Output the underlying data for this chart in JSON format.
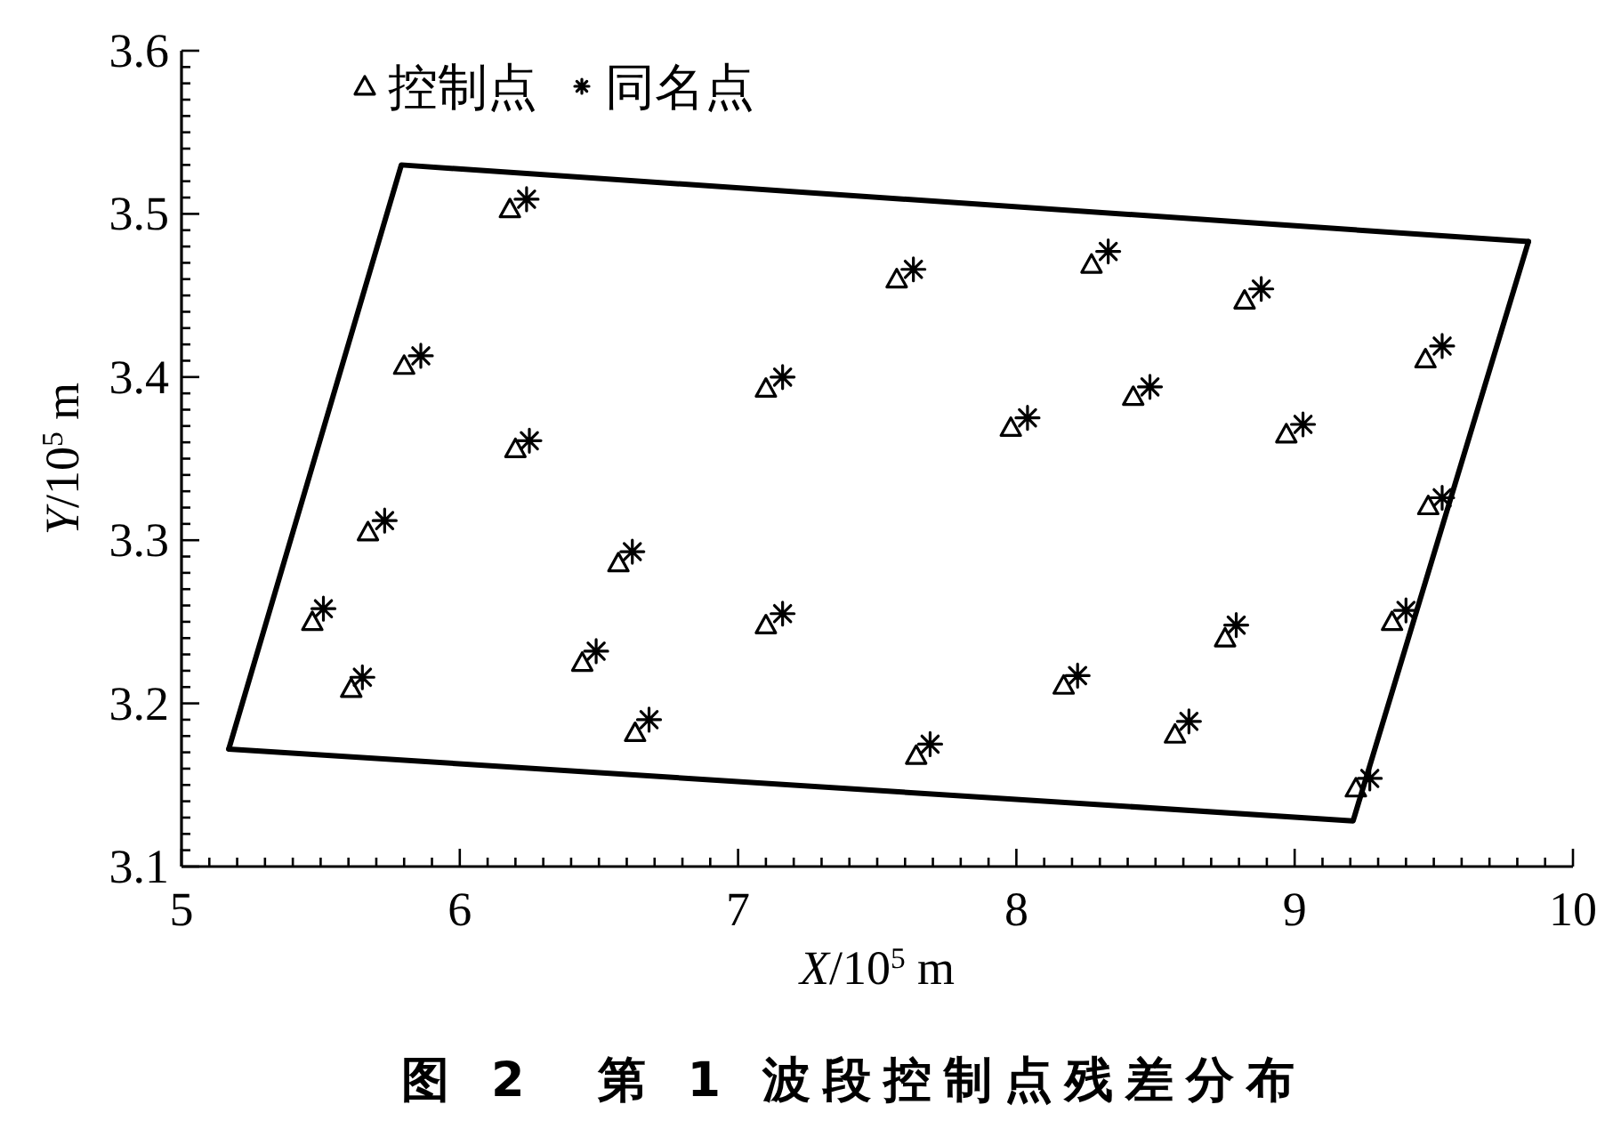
{
  "chart_data": {
    "type": "scatter",
    "title": "图 2　第 1 波段控制点残差分布",
    "xlabel": "*X*/10$^{5}$ m",
    "ylabel": "*Y*/10$^{5}$ m",
    "xlim": [
      5,
      10
    ],
    "ylim": [
      3.1,
      3.6
    ],
    "xticks": [
      5,
      {
        "value": 5.1,
        "label": null
      },
      {
        "value": 5.2,
        "label": null
      },
      {
        "value": 5.3,
        "label": null
      },
      {
        "value": 5.4,
        "label": null
      },
      {
        "value": 5.5,
        "label": null
      },
      {
        "value": 5.6,
        "label": null
      },
      {
        "value": 5.7,
        "label": null
      },
      {
        "value": 5.8,
        "label": null
      },
      {
        "value": 5.9,
        "label": null
      },
      6,
      {
        "value": 6.1,
        "label": null
      },
      {
        "value": 6.2,
        "label": null
      },
      {
        "value": 6.3,
        "label": null
      },
      {
        "value": 6.4,
        "label": null
      },
      {
        "value": 6.5,
        "label": null
      },
      {
        "value": 6.6,
        "label": null
      },
      {
        "value": 6.7,
        "label": null
      },
      {
        "value": 6.8,
        "label": null
      },
      {
        "value": 6.9,
        "label": null
      },
      7,
      {
        "value": 7.1,
        "label": null
      },
      {
        "value": 7.2,
        "label": null
      },
      {
        "value": 7.3,
        "label": null
      },
      {
        "value": 7.4,
        "label": null
      },
      {
        "value": 7.5,
        "label": null
      },
      {
        "value": 7.6,
        "label": null
      },
      {
        "value": 7.7,
        "label": null
      },
      {
        "value": 7.8,
        "label": null
      },
      {
        "value": 7.9,
        "label": null
      },
      8,
      {
        "value": 8.1,
        "label": null
      },
      {
        "value": 8.2,
        "label": null
      },
      {
        "value": 8.3,
        "label": null
      },
      {
        "value": 8.4,
        "label": null
      },
      {
        "value": 8.5,
        "label": null
      },
      {
        "value": 8.6,
        "label": null
      },
      {
        "value": 8.7,
        "label": null
      },
      {
        "value": 8.8,
        "label": null
      },
      {
        "value": 8.9,
        "label": null
      },
      9,
      {
        "value": 9.1,
        "label": null
      },
      {
        "value": 9.2,
        "label": null
      },
      {
        "value": 9.3,
        "label": null
      },
      {
        "value": 9.4,
        "label": null
      },
      {
        "value": 9.5,
        "label": null
      },
      {
        "value": 9.6,
        "label": null
      },
      {
        "value": 9.7,
        "label": null
      },
      {
        "value": 9.8,
        "label": null
      },
      {
        "value": 9.9,
        "label": null
      },
      10
    ],
    "yticks": [
      3.1,
      {
        "value": 3.11,
        "label": null
      },
      {
        "value": 3.12,
        "label": null
      },
      {
        "value": 3.13,
        "label": null
      },
      {
        "value": 3.14,
        "label": null
      },
      {
        "value": 3.15,
        "label": null
      },
      {
        "value": 3.16,
        "label": null
      },
      {
        "value": 3.17,
        "label": null
      },
      {
        "value": 3.18,
        "label": null
      },
      {
        "value": 3.19,
        "label": null
      },
      3.2,
      {
        "value": 3.21,
        "label": null
      },
      {
        "value": 3.22,
        "label": null
      },
      {
        "value": 3.23,
        "label": null
      },
      {
        "value": 3.24,
        "label": null
      },
      {
        "value": 3.25,
        "label": null
      },
      {
        "value": 3.26,
        "label": null
      },
      {
        "value": 3.27,
        "label": null
      },
      {
        "value": 3.28,
        "label": null
      },
      {
        "value": 3.29,
        "label": null
      },
      3.3,
      {
        "value": 3.31,
        "label": null
      },
      {
        "value": 3.32,
        "label": null
      },
      {
        "value": 3.33,
        "label": null
      },
      {
        "value": 3.34,
        "label": null
      },
      {
        "value": 3.35,
        "label": null
      },
      {
        "value": 3.36,
        "label": null
      },
      {
        "value": 3.37,
        "label": null
      },
      {
        "value": 3.38,
        "label": null
      },
      {
        "value": 3.39,
        "label": null
      },
      3.4,
      {
        "value": 3.41,
        "label": null
      },
      {
        "value": 3.42,
        "label": null
      },
      {
        "value": 3.43,
        "label": null
      },
      {
        "value": 3.44,
        "label": null
      },
      {
        "value": 3.45,
        "label": null
      },
      {
        "value": 3.46,
        "label": null
      },
      {
        "value": 3.47,
        "label": null
      },
      {
        "value": 3.48,
        "label": null
      },
      {
        "value": 3.49,
        "label": null
      },
      3.5,
      {
        "value": 3.51,
        "label": null
      },
      {
        "value": 3.52,
        "label": null
      },
      {
        "value": 3.53,
        "label": null
      },
      {
        "value": 3.54,
        "label": null
      },
      {
        "value": 3.55,
        "label": null
      },
      {
        "value": 3.56,
        "label": null
      },
      {
        "value": 3.57,
        "label": null
      },
      {
        "value": 3.58,
        "label": null
      },
      {
        "value": 3.59,
        "label": null
      },
      3.6
    ],
    "legend": "top left",
    "series": [
      {
        "type": "line",
        "color": "#000000",
        "x": [
          5.17,
          5.79,
          9.84
        ],
        "values": [
          3.172,
          3.53,
          3.483
        ]
      },
      {
        "type": "line",
        "color": "#000000",
        "x": [
          5.17,
          9.21,
          9.84
        ],
        "values": [
          3.172,
          3.128,
          3.483
        ]
      },
      {
        "name": "控制点",
        "marker": "triangle",
        "color": "#000000",
        "x": [
          6.18,
          5.8,
          7.1,
          6.2,
          7.57,
          8.27,
          8.82,
          9.47,
          8.42,
          7.98,
          8.97,
          5.67,
          6.57,
          5.47,
          7.1,
          6.44,
          5.61,
          6.63,
          9.48,
          9.35,
          8.75,
          8.17,
          8.57,
          7.64,
          9.22
        ],
        "values": [
          3.503,
          3.407,
          3.393,
          3.356,
          3.46,
          3.469,
          3.447,
          3.411,
          3.388,
          3.369,
          3.365,
          3.305,
          3.286,
          3.25,
          3.248,
          3.225,
          3.209,
          3.182,
          3.321,
          3.25,
          3.24,
          3.211,
          3.181,
          3.168,
          3.148
        ]
      },
      {
        "name": "同名点",
        "marker": "cross",
        "color": "#000000",
        "x": [
          6.24,
          5.86,
          7.16,
          6.25,
          7.63,
          8.33,
          8.88,
          9.53,
          8.48,
          8.04,
          9.03,
          5.73,
          6.62,
          5.51,
          7.16,
          6.49,
          5.65,
          6.68,
          9.53,
          9.4,
          8.79,
          8.22,
          8.62,
          7.69,
          9.27
        ],
        "values": [
          3.509,
          3.413,
          3.4,
          3.361,
          3.466,
          3.477,
          3.454,
          3.419,
          3.394,
          3.375,
          3.371,
          3.312,
          3.293,
          3.258,
          3.255,
          3.232,
          3.216,
          3.19,
          3.326,
          3.257,
          3.248,
          3.217,
          3.189,
          3.175,
          3.154
        ]
      }
    ]
  }
}
